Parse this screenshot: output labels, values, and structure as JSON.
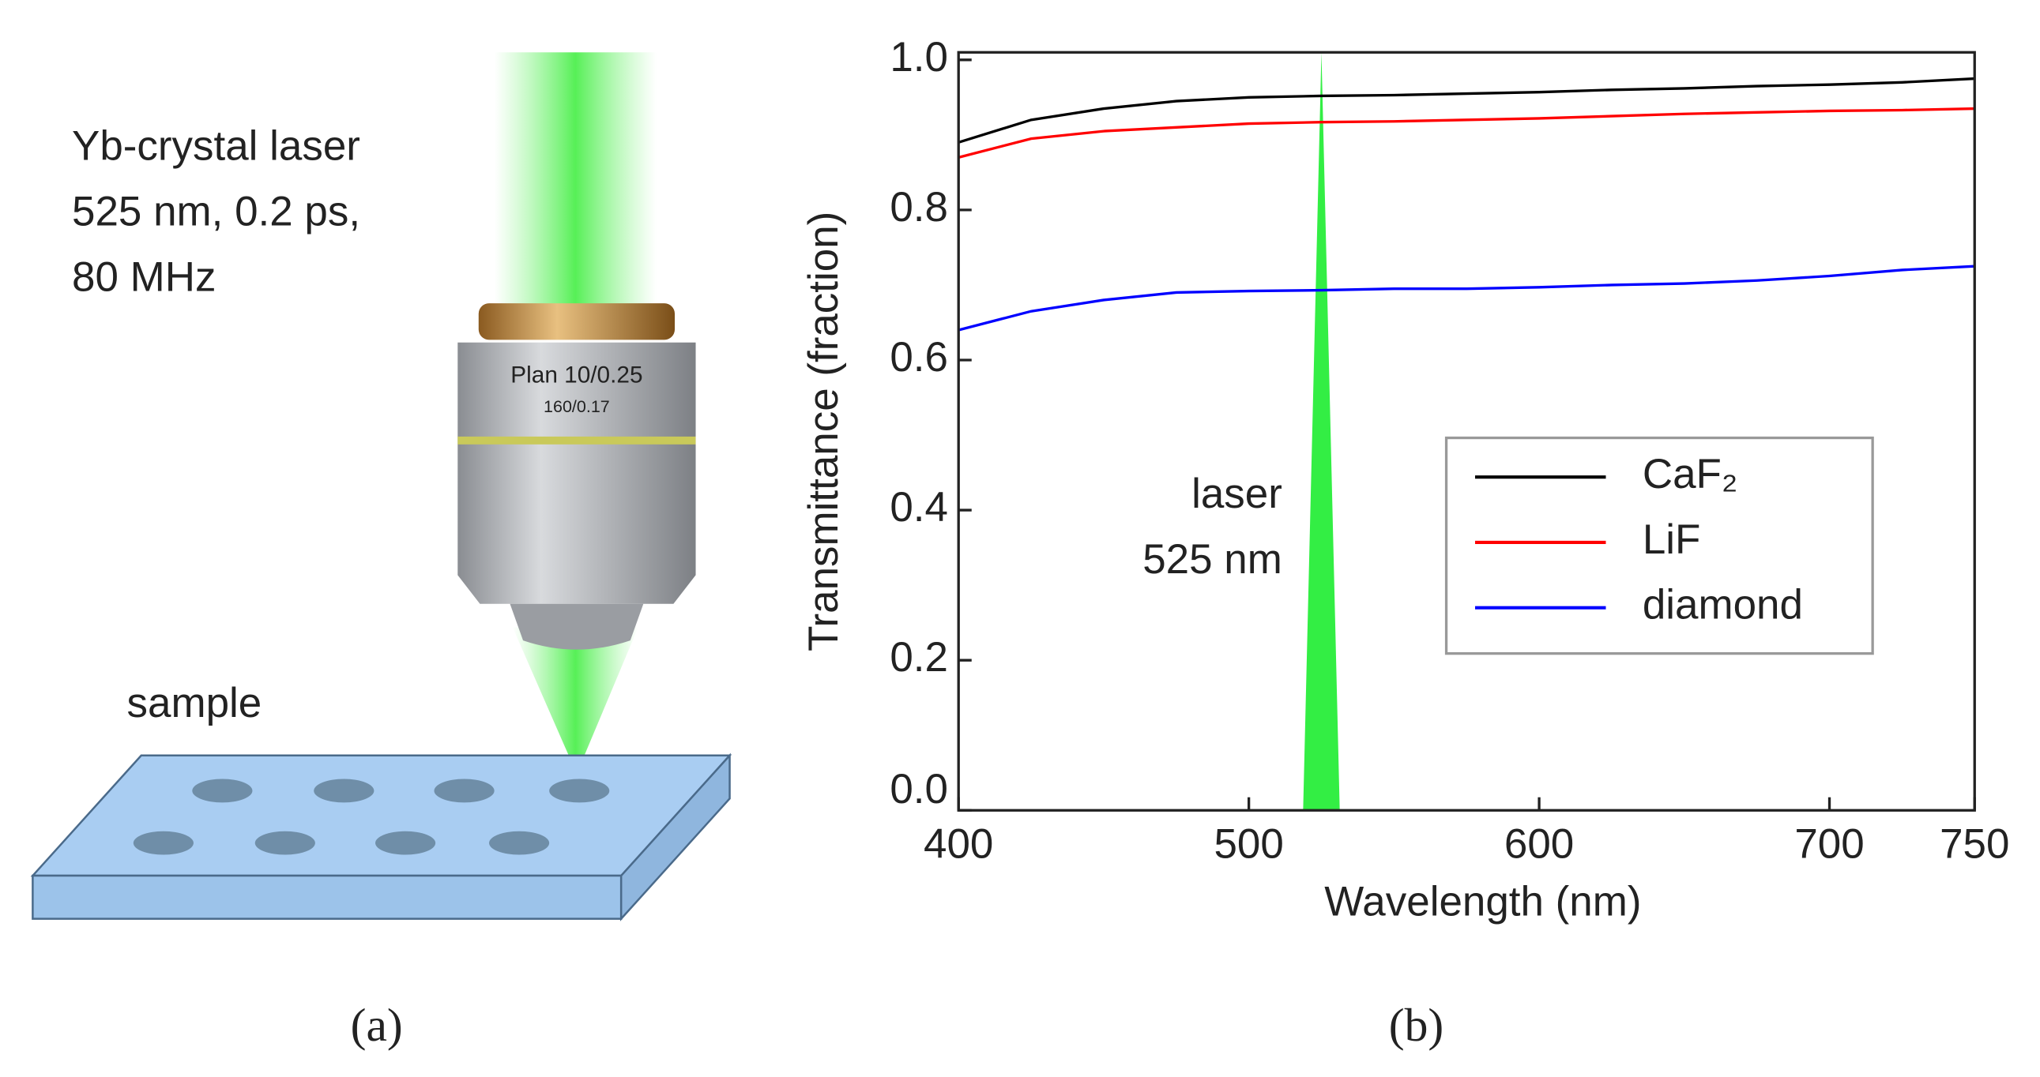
{
  "panel_a": {
    "laser_lines": [
      "Yb-crystal laser",
      "525 nm, 0.2 ps,",
      "80 MHz"
    ],
    "objective_lines": [
      "Plan 10/0.25",
      "160/0.17"
    ],
    "sample": "sample",
    "caption": "(a)"
  },
  "caption_b": "(b)",
  "chart_data": {
    "type": "line",
    "x_label": "Wavelength (nm)",
    "y_label": "Transmittance (fraction)",
    "x": [
      400,
      425,
      450,
      475,
      500,
      525,
      550,
      575,
      600,
      625,
      650,
      675,
      700,
      725,
      750
    ],
    "series": [
      {
        "name": "CaF₂",
        "color": "#000000",
        "values": [
          0.89,
          0.92,
          0.935,
          0.945,
          0.95,
          0.952,
          0.953,
          0.955,
          0.957,
          0.96,
          0.962,
          0.965,
          0.967,
          0.97,
          0.975
        ]
      },
      {
        "name": "LiF",
        "color": "#ff0000",
        "values": [
          0.87,
          0.895,
          0.905,
          0.91,
          0.915,
          0.917,
          0.918,
          0.92,
          0.922,
          0.925,
          0.928,
          0.93,
          0.932,
          0.933,
          0.935
        ]
      },
      {
        "name": "diamond",
        "color": "#0000ff",
        "values": [
          0.64,
          0.665,
          0.68,
          0.69,
          0.692,
          0.693,
          0.695,
          0.695,
          0.697,
          0.7,
          0.702,
          0.706,
          0.712,
          0.72,
          0.725
        ]
      }
    ],
    "laser_wavelength": 525,
    "laser_color": "#33ee44",
    "laser_label": [
      "laser",
      "525 nm"
    ],
    "xlim": [
      400,
      750
    ],
    "xticks": [
      400,
      500,
      600,
      700,
      750
    ],
    "ylim": [
      0,
      1.01
    ],
    "yticks": [
      {
        "value": 0,
        "label": "0.0"
      },
      0.2,
      0.4,
      0.6,
      0.8,
      {
        "value": 1,
        "label": "1.0"
      }
    ],
    "legend": "center right"
  }
}
